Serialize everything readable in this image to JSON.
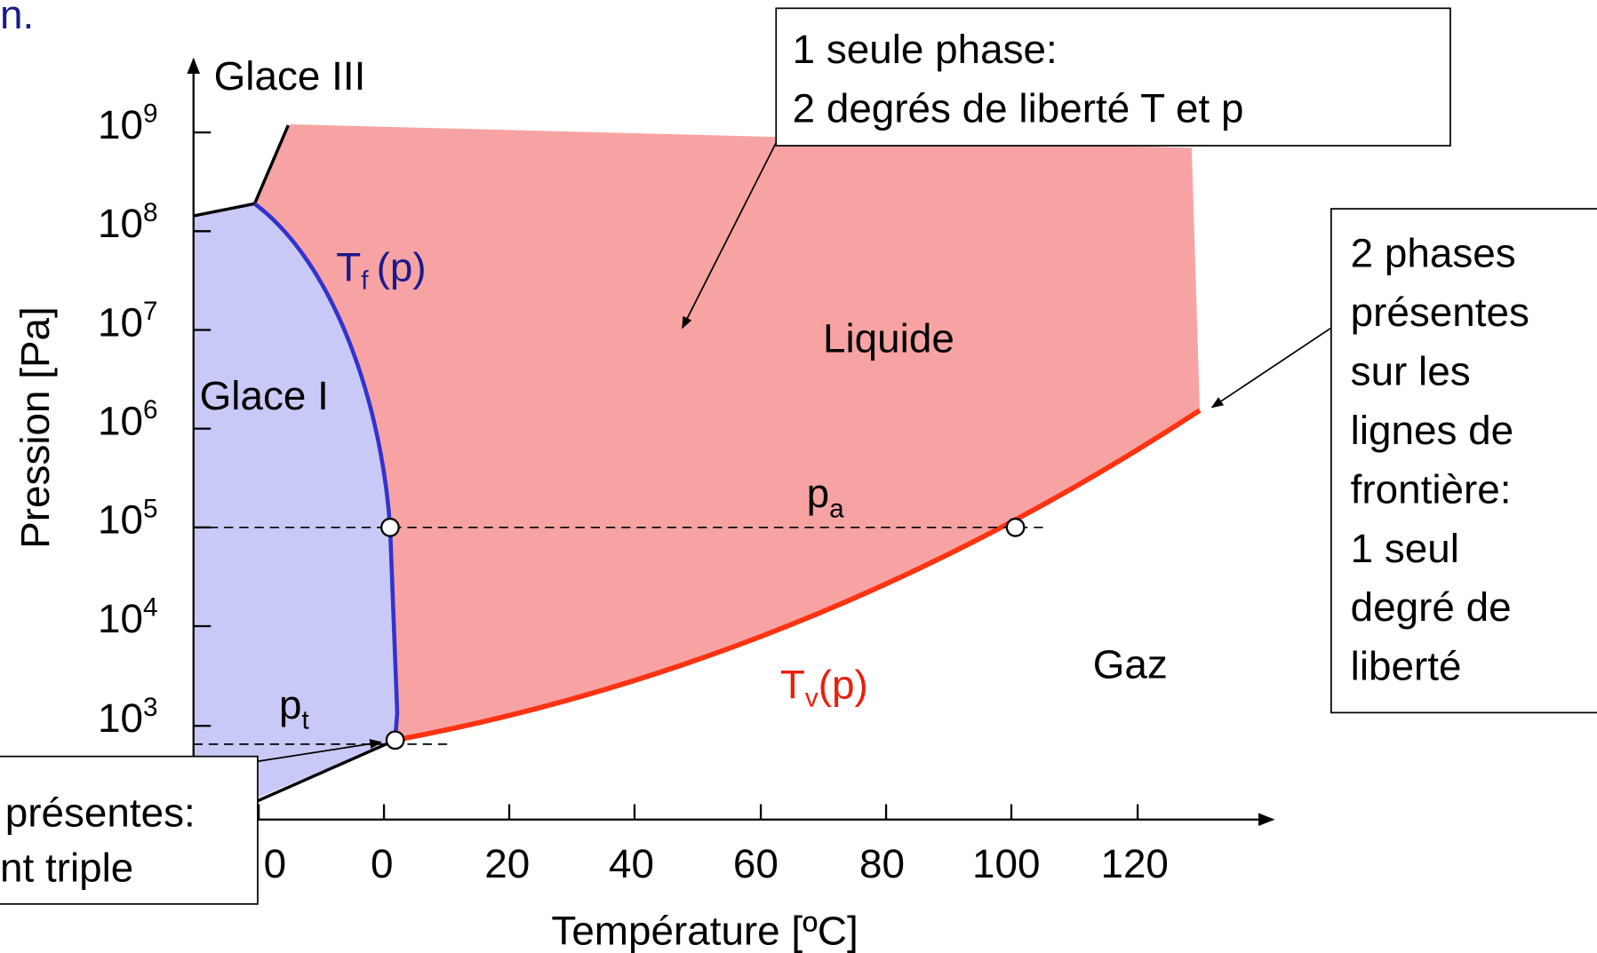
{
  "header": {
    "fragment": "n."
  },
  "axes": {
    "y_label": "Pression [Pa]",
    "x_label": "Température [ºC]",
    "y_ticks": [
      {
        "base": "10",
        "exp": "9"
      },
      {
        "base": "10",
        "exp": "8"
      },
      {
        "base": "10",
        "exp": "7"
      },
      {
        "base": "10",
        "exp": "6"
      },
      {
        "base": "10",
        "exp": "5"
      },
      {
        "base": "10",
        "exp": "4"
      },
      {
        "base": "10",
        "exp": "3"
      }
    ],
    "x_ticks": [
      "0",
      "0",
      "20",
      "40",
      "60",
      "80",
      "100",
      "120"
    ]
  },
  "regions": {
    "glace_iii": "Glace III",
    "glace_i": "Glace I",
    "liquide": "Liquide",
    "gaz": "Gaz"
  },
  "curves": {
    "fusion": {
      "symbol": "T",
      "sub": "f",
      "arg": "(p)"
    },
    "vaporisation": {
      "symbol": "T",
      "sub": "v",
      "arg": "(p)"
    }
  },
  "pressures": {
    "pa": {
      "symbol": "p",
      "sub": "a"
    },
    "pt": {
      "symbol": "p",
      "sub": "t"
    }
  },
  "callouts": {
    "one_phase": [
      "1 seule phase:",
      "2 degrés de liberté T et p"
    ],
    "two_phases": [
      "2 phases",
      "présentes",
      "sur les",
      "lignes de",
      "frontière:",
      "1 seul",
      "degré de",
      "liberté"
    ],
    "three_phases": [
      "présentes:",
      "nt triple"
    ]
  }
}
